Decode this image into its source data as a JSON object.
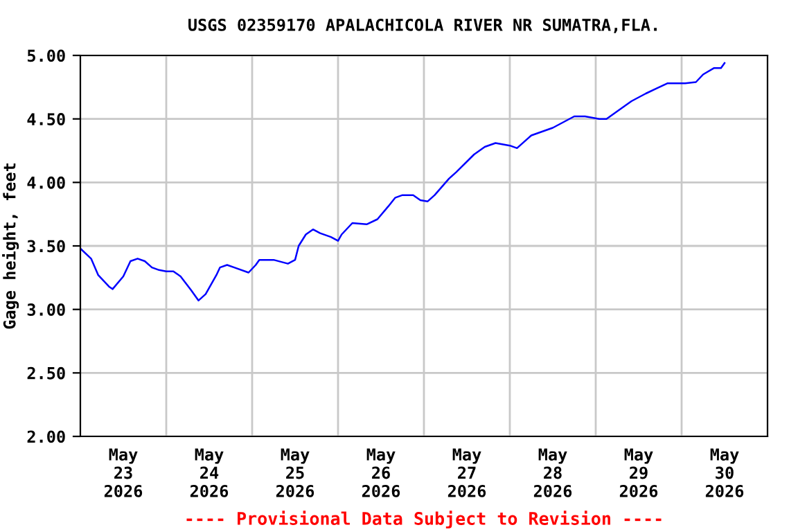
{
  "chart_data": {
    "type": "line",
    "title": "USGS 02359170 APALACHICOLA RIVER NR SUMATRA,FLA.",
    "ylabel": "Gage height, feet",
    "annotations": [
      "---- Provisional Data Subject to Revision ----"
    ],
    "x": [
      "2026-05-23T00:00",
      "2026-05-23T03:00",
      "2026-05-23T05:00",
      "2026-05-23T08:00",
      "2026-05-23T09:00",
      "2026-05-23T12:00",
      "2026-05-23T14:00",
      "2026-05-23T16:00",
      "2026-05-23T18:00",
      "2026-05-23T20:00",
      "2026-05-23T22:00",
      "2026-05-24T00:00",
      "2026-05-24T02:00",
      "2026-05-24T04:00",
      "2026-05-24T07:00",
      "2026-05-24T09:00",
      "2026-05-24T11:00",
      "2026-05-24T14:00",
      "2026-05-24T15:00",
      "2026-05-24T17:00",
      "2026-05-24T19:00",
      "2026-05-24T23:00",
      "2026-05-25T01:00",
      "2026-05-25T02:00",
      "2026-05-25T06:00",
      "2026-05-25T10:00",
      "2026-05-25T12:00",
      "2026-05-25T13:00",
      "2026-05-25T15:00",
      "2026-05-25T17:00",
      "2026-05-25T19:00",
      "2026-05-25T22:00",
      "2026-05-26T00:00",
      "2026-05-26T01:00",
      "2026-05-26T04:00",
      "2026-05-26T08:00",
      "2026-05-26T11:00",
      "2026-05-26T14:00",
      "2026-05-26T16:00",
      "2026-05-26T18:00",
      "2026-05-26T21:00",
      "2026-05-26T23:00",
      "2026-05-27T01:00",
      "2026-05-27T03:00",
      "2026-05-27T07:00",
      "2026-05-27T09:00",
      "2026-05-27T14:00",
      "2026-05-27T17:00",
      "2026-05-27T20:00",
      "2026-05-28T00:00",
      "2026-05-28T02:00",
      "2026-05-28T06:00",
      "2026-05-28T09:00",
      "2026-05-28T12:00",
      "2026-05-28T16:00",
      "2026-05-28T18:00",
      "2026-05-28T21:00",
      "2026-05-29T01:00",
      "2026-05-29T03:00",
      "2026-05-29T07:00",
      "2026-05-29T10:00",
      "2026-05-29T14:00",
      "2026-05-29T17:00",
      "2026-05-29T20:00",
      "2026-05-30T01:00",
      "2026-05-30T04:00",
      "2026-05-30T06:00",
      "2026-05-30T09:00",
      "2026-05-30T11:00",
      "2026-05-30T12:00"
    ],
    "series": [
      {
        "color": "#0000ff",
        "values": [
          3.48,
          3.4,
          3.27,
          3.18,
          3.16,
          3.26,
          3.38,
          3.4,
          3.38,
          3.33,
          3.31,
          3.3,
          3.3,
          3.26,
          3.15,
          3.07,
          3.12,
          3.27,
          3.33,
          3.35,
          3.33,
          3.29,
          3.35,
          3.39,
          3.39,
          3.36,
          3.39,
          3.5,
          3.59,
          3.63,
          3.6,
          3.57,
          3.54,
          3.59,
          3.68,
          3.67,
          3.71,
          3.81,
          3.88,
          3.9,
          3.9,
          3.86,
          3.85,
          3.9,
          4.03,
          4.08,
          4.22,
          4.28,
          4.31,
          4.29,
          4.27,
          4.37,
          4.4,
          4.43,
          4.49,
          4.52,
          4.52,
          4.5,
          4.5,
          4.58,
          4.64,
          4.7,
          4.74,
          4.78,
          4.78,
          4.79,
          4.85,
          4.9,
          4.9,
          4.94
        ]
      }
    ],
    "xlim": [
      "2026-05-23T00:00",
      "2026-05-31T00:00"
    ],
    "xticks": [
      {
        "value": "2026-05-24T00:00",
        "label": null
      },
      {
        "value": "2026-05-25T00:00",
        "label": null
      },
      {
        "value": "2026-05-26T00:00",
        "label": null
      },
      {
        "value": "2026-05-27T00:00",
        "label": null
      },
      {
        "value": "2026-05-28T00:00",
        "label": null
      },
      {
        "value": "2026-05-29T00:00",
        "label": null
      },
      {
        "value": "2026-05-30T00:00",
        "label": null
      },
      {
        "value": "2026-05-23T12:00",
        "label": "May\n23\n2026"
      },
      {
        "value": "2026-05-24T12:00",
        "label": "May\n24\n2026"
      },
      {
        "value": "2026-05-25T12:00",
        "label": "May\n25\n2026"
      },
      {
        "value": "2026-05-26T12:00",
        "label": "May\n26\n2026"
      },
      {
        "value": "2026-05-27T12:00",
        "label": "May\n27\n2026"
      },
      {
        "value": "2026-05-28T12:00",
        "label": "May\n28\n2026"
      },
      {
        "value": "2026-05-29T12:00",
        "label": "May\n29\n2026"
      },
      {
        "value": "2026-05-30T12:00",
        "label": "May\n30\n2026"
      }
    ],
    "ylim": [
      2,
      5
    ],
    "yticks": [
      {
        "value": 2,
        "label": "2.00"
      },
      {
        "value": 2.5,
        "label": "2.50"
      },
      {
        "value": 3,
        "label": "3.00"
      },
      {
        "value": 3.5,
        "label": "3.50"
      },
      {
        "value": 4,
        "label": "4.00"
      },
      {
        "value": 4.5,
        "label": "4.50"
      },
      {
        "value": 5,
        "label": "5.00"
      }
    ],
    "grid": true,
    "line_style": "solid",
    "marker": "none"
  }
}
